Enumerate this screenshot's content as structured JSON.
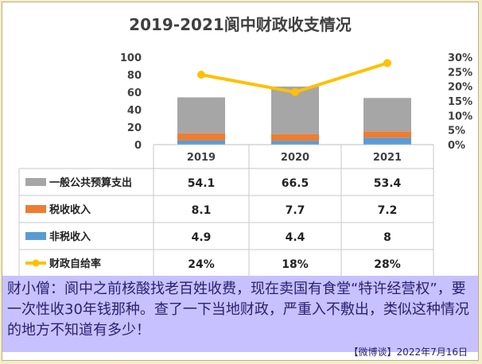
{
  "chart_data": {
    "type": "bar",
    "title": "2019-2021阆中财政收支情况",
    "categories": [
      "2019",
      "2020",
      "2021"
    ],
    "series": [
      {
        "name": "一般公共预算支出",
        "kind": "bar",
        "color": "#a6a6a6",
        "values": [
          54.1,
          66.5,
          53.4
        ],
        "labels": [
          "54.1",
          "66.5",
          "53.4"
        ]
      },
      {
        "name": "税收收入",
        "kind": "bar",
        "color": "#ed7d31",
        "values": [
          8.1,
          7.7,
          7.2
        ],
        "labels": [
          "8.1",
          "7.7",
          "7.2"
        ]
      },
      {
        "name": "非税收入",
        "kind": "bar",
        "color": "#5b9bd5",
        "values": [
          4.9,
          4.4,
          8
        ],
        "labels": [
          "4.9",
          "4.4",
          "8"
        ]
      },
      {
        "name": "财政自给率",
        "kind": "line",
        "axis": "right",
        "color": "#ffc000",
        "values": [
          24,
          18,
          28
        ],
        "labels": [
          "24%",
          "18%",
          "28%"
        ]
      }
    ],
    "y_left": {
      "range": [
        0,
        100
      ],
      "ticks": [
        "0",
        "20",
        "40",
        "60",
        "80",
        "100"
      ]
    },
    "y_right": {
      "range": [
        0,
        30
      ],
      "ticks": [
        "0%",
        "5%",
        "10%",
        "15%",
        "20%",
        "25%",
        "30%"
      ]
    },
    "grid": false,
    "legend": "data-table-left"
  },
  "caption": {
    "text": "财小僧：阆中之前核酸找老百姓收费，现在卖国有食堂“特许经营权”，要一次性收30年钱那种。查了一下当地财政，严重入不敷出，类似这种情况的地方不知道有多少！",
    "footer": "【微博谈】2022年7月16日"
  },
  "colors": {
    "background": "#f3edc8",
    "caption_bg": "#c8c1ff",
    "caption_text": "#2a2170"
  }
}
